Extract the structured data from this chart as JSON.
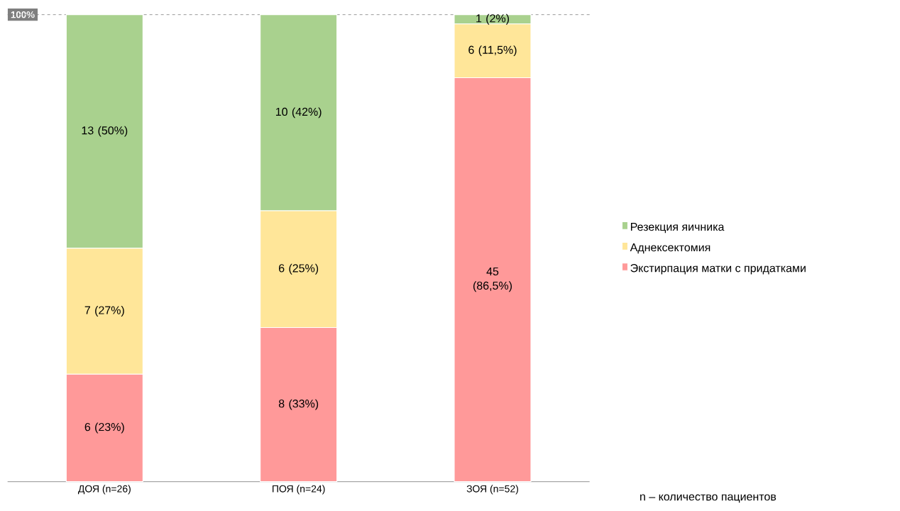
{
  "chart_data": {
    "type": "bar",
    "stacked": true,
    "categories": [
      "ДОЯ (n=26)",
      "ПОЯ (n=24)",
      "ЗОЯ (n=52)"
    ],
    "ylim": [
      0,
      100
    ],
    "legend": "right",
    "series": [
      {
        "name": "Экстирпация матки с придатками",
        "color": "#ff9999",
        "values": [
          23,
          33,
          86.5
        ],
        "value_labels": [
          "6 (23%)",
          "8 (33%)",
          "45 (86,5%)"
        ]
      },
      {
        "name": "Аднексектомия",
        "color": "#ffe699",
        "values": [
          27,
          25,
          11.5
        ],
        "value_labels": [
          "7 (27%)",
          "6 (25%)",
          "6 (11,5%)"
        ]
      },
      {
        "name": "Резекция яичника",
        "color": "#a9d18e",
        "values": [
          50,
          42,
          2
        ],
        "value_labels": [
          "13 (50%)",
          "10 (42%)",
          "1 (2%)"
        ]
      }
    ],
    "ref_lines": [
      {
        "axis": "y",
        "value": 100,
        "label": "100%",
        "line_style": "dashed",
        "color": "#7f7f7f"
      }
    ],
    "annotations": [
      "n – количество пациентов"
    ]
  }
}
